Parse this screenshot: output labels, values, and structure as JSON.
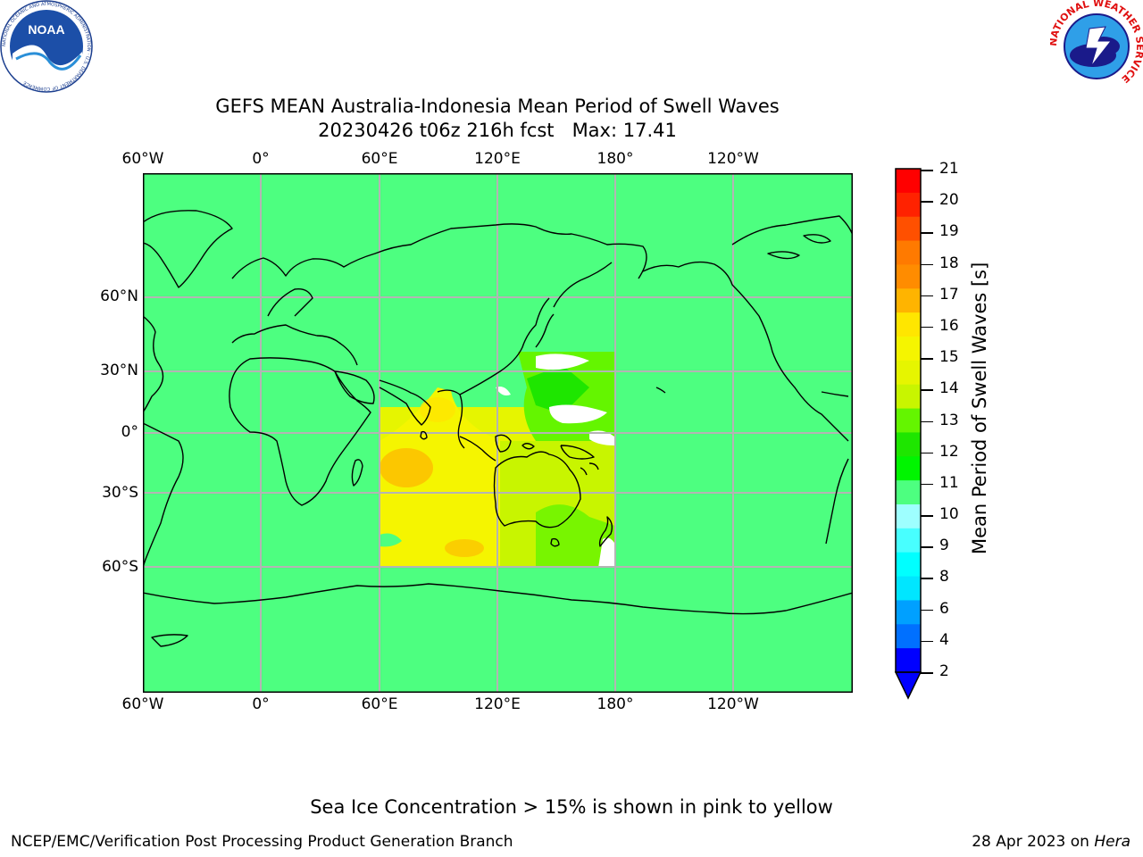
{
  "header": {
    "title_line1": "GEFS MEAN Australia-Indonesia Mean Period of Swell Waves",
    "title_line2": "20230426 t06z 216h fcst   Max: 17.41",
    "noaa_logo_text": "NOAA",
    "noaa_ring_text": "NATIONAL OCEANIC AND ATMOSPHERIC ADMINISTRATION · U.S. DEPARTMENT OF COMMERCE",
    "nws_ring_text": "NATIONAL WEATHER SERVICE"
  },
  "map": {
    "lon_ticks": [
      "60°W",
      "0°",
      "60°E",
      "120°E",
      "180°",
      "120°W"
    ],
    "lat_ticks": [
      "60°N",
      "30°N",
      "0°",
      "30°S",
      "60°S"
    ],
    "background_color": "#4dff80",
    "grid_color": "#b4b4b4",
    "coast_color": "#000000"
  },
  "colorbar": {
    "title": "Mean Period of Swell Waves [s]",
    "labels": [
      "21",
      "20",
      "19",
      "18",
      "17",
      "16",
      "15",
      "14",
      "13",
      "12",
      "11",
      "10",
      "9",
      "8",
      "6",
      "4",
      "2"
    ],
    "colors": [
      "#ff0000",
      "#ff2200",
      "#ff5000",
      "#ff7a00",
      "#ff8c00",
      "#ffb400",
      "#ffe600",
      "#f5f500",
      "#e6f500",
      "#c8f500",
      "#64f500",
      "#1ee600",
      "#00f500",
      "#4dff80",
      "#9effff",
      "#48ffff",
      "#00ffff",
      "#00e6ff",
      "#00a0ff",
      "#0070ff",
      "#0000ff"
    ]
  },
  "footer": {
    "note": "Sea Ice Concentration > 15% is shown in pink to yellow",
    "left": "NCEP/EMC/Verification Post Processing Product Generation Branch",
    "right_date": "28 Apr 2023 on",
    "right_host": "Hera"
  }
}
